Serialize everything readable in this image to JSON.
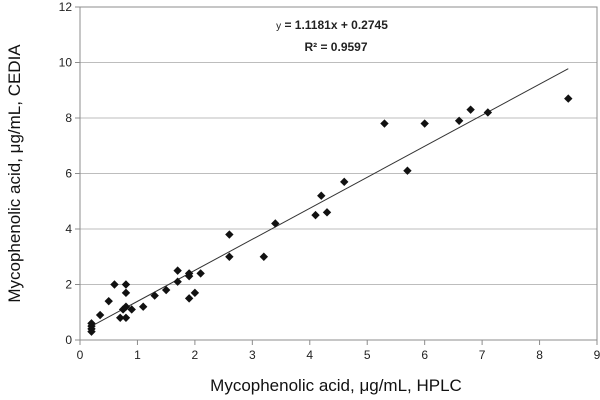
{
  "chart_data": {
    "type": "scatter",
    "title": "",
    "xlabel": "Mycophenolic acid, μg/mL, HPLC",
    "ylabel": "Mycophenolic acid, μg/mL, CEDIA",
    "xlim": [
      0,
      9
    ],
    "ylim": [
      0,
      12
    ],
    "xticks": [
      "0",
      "1",
      "2",
      "3",
      "4",
      "5",
      "6",
      "7",
      "8",
      "9"
    ],
    "yticks": [
      "0",
      "2",
      "4",
      "6",
      "8",
      "10",
      "12"
    ],
    "grid": "horizontal",
    "marker": "diamond",
    "colors": {
      "marker": "#111111",
      "line": "#333333",
      "grid": "#bdbdbd",
      "frame": "#8c8c8c"
    },
    "points": [
      {
        "x": 0.2,
        "y": 0.3
      },
      {
        "x": 0.2,
        "y": 0.4
      },
      {
        "x": 0.2,
        "y": 0.5
      },
      {
        "x": 0.2,
        "y": 0.6
      },
      {
        "x": 0.35,
        "y": 0.9
      },
      {
        "x": 0.5,
        "y": 1.4
      },
      {
        "x": 0.6,
        "y": 2.0
      },
      {
        "x": 0.7,
        "y": 0.8
      },
      {
        "x": 0.75,
        "y": 1.1
      },
      {
        "x": 0.8,
        "y": 0.8
      },
      {
        "x": 0.8,
        "y": 1.2
      },
      {
        "x": 0.8,
        "y": 1.7
      },
      {
        "x": 0.8,
        "y": 2.0
      },
      {
        "x": 0.9,
        "y": 1.1
      },
      {
        "x": 1.1,
        "y": 1.2
      },
      {
        "x": 1.3,
        "y": 1.6
      },
      {
        "x": 1.5,
        "y": 1.8
      },
      {
        "x": 1.7,
        "y": 2.1
      },
      {
        "x": 1.7,
        "y": 2.5
      },
      {
        "x": 1.9,
        "y": 1.5
      },
      {
        "x": 1.9,
        "y": 2.3
      },
      {
        "x": 1.9,
        "y": 2.4
      },
      {
        "x": 2.0,
        "y": 1.7
      },
      {
        "x": 2.1,
        "y": 2.4
      },
      {
        "x": 2.6,
        "y": 3.0
      },
      {
        "x": 2.6,
        "y": 3.8
      },
      {
        "x": 3.2,
        "y": 3.0
      },
      {
        "x": 3.4,
        "y": 4.2
      },
      {
        "x": 4.1,
        "y": 4.5
      },
      {
        "x": 4.2,
        "y": 5.2
      },
      {
        "x": 4.3,
        "y": 4.6
      },
      {
        "x": 4.6,
        "y": 5.7
      },
      {
        "x": 5.3,
        "y": 7.8
      },
      {
        "x": 5.7,
        "y": 6.1
      },
      {
        "x": 6.0,
        "y": 7.8
      },
      {
        "x": 6.6,
        "y": 7.9
      },
      {
        "x": 6.8,
        "y": 8.3
      },
      {
        "x": 7.1,
        "y": 8.2
      },
      {
        "x": 8.5,
        "y": 8.7
      }
    ],
    "trendline": {
      "slope": 1.1181,
      "intercept": 0.2745,
      "x_range": [
        0.2,
        8.5
      ],
      "equation_prefix": "y",
      "equation_body": " = 1.1181x + 0.2745",
      "r_squared_text": "R² = 0.9597"
    }
  }
}
